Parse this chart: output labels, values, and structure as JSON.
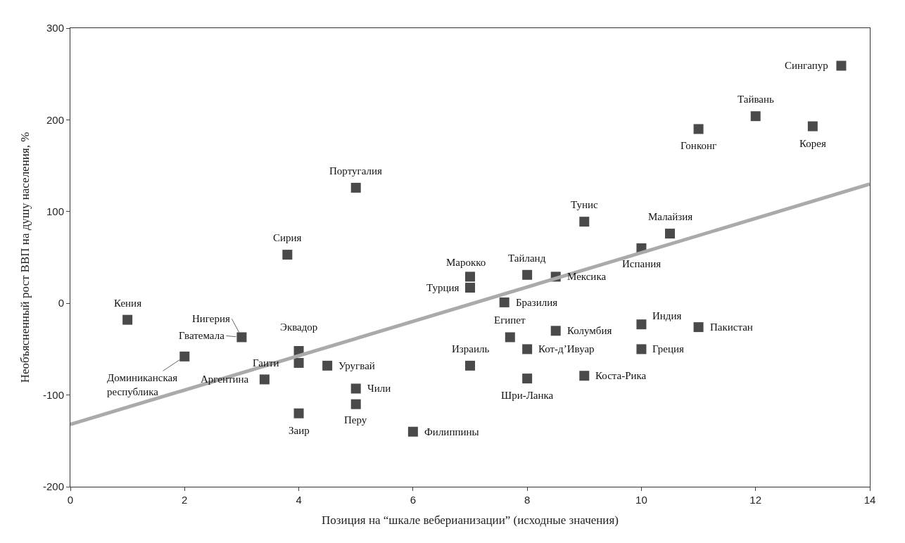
{
  "chart_data": {
    "type": "scatter",
    "xlabel": "Позиция на “шкале веберианизации” (исходные значения)",
    "ylabel": "Необъясненный рост ВВП на душу населения, %",
    "xlim": [
      0,
      14
    ],
    "ylim": [
      -200,
      300
    ],
    "xticks": [
      0,
      2,
      4,
      6,
      8,
      10,
      12,
      14
    ],
    "yticks": [
      -200,
      -100,
      0,
      100,
      200,
      300
    ],
    "series": [
      {
        "marker": "square",
        "color": "#4a4a4a",
        "x": [
          1,
          3,
          2,
          4,
          4,
          3.4,
          4,
          3.8,
          5,
          4.5,
          5,
          5,
          6,
          7,
          7,
          7,
          7.6,
          8,
          7.7,
          8,
          8,
          8.5,
          8.5,
          9,
          9,
          10,
          10.5,
          10,
          10,
          11,
          11,
          12,
          13,
          13.5
        ],
        "values": [
          -18,
          -37,
          -58,
          -52,
          -65,
          -83,
          -120,
          53,
          126,
          -68,
          -93,
          -110,
          -140,
          -68,
          29,
          17,
          1,
          31,
          -37,
          -50,
          -82,
          29,
          -30,
          -79,
          89,
          60,
          76,
          -23,
          -50,
          -26,
          190,
          204,
          193,
          259
        ]
      },
      {
        "type": "line",
        "color": "#aaaaaa",
        "x": [
          0,
          14
        ],
        "values": [
          -132,
          130
        ]
      }
    ],
    "annotations": [
      {
        "text": "Кения",
        "x": 1,
        "y": -18
      },
      {
        "text": "Гватемала",
        "x": 3,
        "y": -37
      },
      {
        "text": "Нигерия",
        "x": 3,
        "y": -37
      },
      {
        "text": "Доминиканская\nреспублика",
        "x": 2,
        "y": -58
      },
      {
        "text": "Эквадор",
        "x": 4,
        "y": -52
      },
      {
        "text": "Гаити",
        "x": 4,
        "y": -65
      },
      {
        "text": "Аргентина",
        "x": 3.4,
        "y": -83
      },
      {
        "text": "Заир",
        "x": 4,
        "y": -120
      },
      {
        "text": "Сирия",
        "x": 3.8,
        "y": 53
      },
      {
        "text": "Португалия",
        "x": 5,
        "y": 126
      },
      {
        "text": "Уругвай",
        "x": 4.5,
        "y": -68
      },
      {
        "text": "Чили",
        "x": 5,
        "y": -93
      },
      {
        "text": "Перу",
        "x": 5,
        "y": -110
      },
      {
        "text": "Филиппины",
        "x": 6,
        "y": -140
      },
      {
        "text": "Израиль",
        "x": 7,
        "y": -68
      },
      {
        "text": "Марокко",
        "x": 7,
        "y": 29
      },
      {
        "text": "Турция",
        "x": 7,
        "y": 17
      },
      {
        "text": "Бразилия",
        "x": 7.6,
        "y": 1
      },
      {
        "text": "Тайланд",
        "x": 8,
        "y": 31
      },
      {
        "text": "Египет",
        "x": 7.7,
        "y": -37
      },
      {
        "text": "Кот-д’Ивуар",
        "x": 8,
        "y": -50
      },
      {
        "text": "Шри-Ланка",
        "x": 8,
        "y": -82
      },
      {
        "text": "Мексика",
        "x": 8.5,
        "y": 29
      },
      {
        "text": "Колумбия",
        "x": 8.5,
        "y": -30
      },
      {
        "text": "Коста-Рика",
        "x": 9,
        "y": -79
      },
      {
        "text": "Тунис",
        "x": 9,
        "y": 89
      },
      {
        "text": "Испания",
        "x": 10,
        "y": 60
      },
      {
        "text": "Малайзия",
        "x": 10.5,
        "y": 76
      },
      {
        "text": "Индия",
        "x": 10,
        "y": -23
      },
      {
        "text": "Греция",
        "x": 10,
        "y": -50
      },
      {
        "text": "Пакистан",
        "x": 11,
        "y": -26
      },
      {
        "text": "Гонконг",
        "x": 11,
        "y": 190
      },
      {
        "text": "Тайвань",
        "x": 12,
        "y": 204
      },
      {
        "text": "Корея",
        "x": 13,
        "y": 193
      },
      {
        "text": "Сингапур",
        "x": 13.5,
        "y": 259
      }
    ]
  }
}
